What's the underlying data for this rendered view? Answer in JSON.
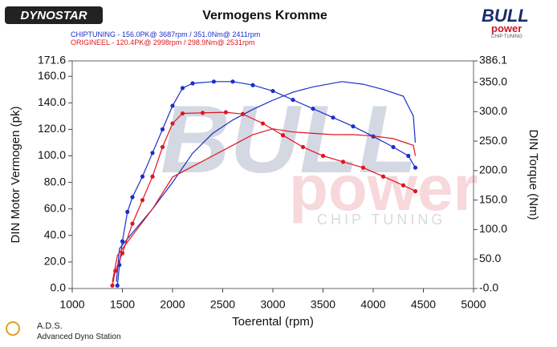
{
  "branding": {
    "left_logo": "DYNOSTAR",
    "right_logo": "BULL",
    "right_logo_sub": "power",
    "right_logo_tag": "CHIP TUNING",
    "watermark": "BULL",
    "watermark_sub": "power",
    "watermark_tag": "CHIP TUNING",
    "footer_title": "A.D.S.",
    "footer_sub": "Advanced Dyno Station"
  },
  "chart_data": {
    "type": "line",
    "title": "Vermogens Kromme",
    "legend": [
      "CHIPTUNING  - 156.0PK@ 3687rpm / 351.0Nm@ 2411rpm",
      "ORIGINEEL  - 120.4PK@ 2998rpm / 298.9Nm@ 2531rpm"
    ],
    "xlabel": "Toerental (rpm)",
    "ylabel": "DIN Motor Vermogen (pk)",
    "y2label": "DIN Torque (Nm)",
    "xlim": [
      1000,
      5000
    ],
    "xticks": [
      1000,
      1500,
      2000,
      2500,
      3000,
      3500,
      4000,
      4500,
      5000
    ],
    "ylim": [
      0,
      171.6
    ],
    "yticks": [
      {
        "value": 0,
        "label": "0.0"
      },
      {
        "value": 20,
        "label": "20.0"
      },
      {
        "value": 40,
        "label": "40.0"
      },
      {
        "value": 60,
        "label": "60.0"
      },
      {
        "value": 80,
        "label": "80.0"
      },
      {
        "value": 100,
        "label": "100.0"
      },
      {
        "value": 120,
        "label": "120.0"
      },
      {
        "value": 140,
        "label": "140.0"
      },
      {
        "value": 160,
        "label": "160.0"
      },
      171.6
    ],
    "y2lim": [
      0,
      386.1
    ],
    "y2ticks": [
      {
        "value": 0,
        "label": "-0.0"
      },
      {
        "value": 50,
        "label": "50.0"
      },
      {
        "value": 100,
        "label": "100.0"
      },
      {
        "value": 150,
        "label": "150.0"
      },
      {
        "value": 200,
        "label": "200.0"
      },
      {
        "value": 250,
        "label": "250.0"
      },
      {
        "value": 300,
        "label": "300.0"
      },
      {
        "value": 350,
        "label": "350.0"
      },
      {
        "value": 386.1,
        "label": "386.1"
      }
    ],
    "grid": false,
    "series": [
      {
        "color": "#1a2fc8",
        "style": "line",
        "x": [
          1440,
          1470,
          1600,
          1800,
          2000,
          2200,
          2400,
          2600,
          2800,
          3000,
          3200,
          3400,
          3687,
          3900,
          4100,
          4300,
          4400,
          4420
        ],
        "values": [
          5,
          30,
          42,
          60,
          80,
          102,
          117,
          127,
          135,
          142,
          148,
          152,
          156,
          154,
          150,
          145,
          130,
          110
        ]
      },
      {
        "color": "#1a2fc8",
        "style": "dots",
        "axis": "y2",
        "x": [
          1450,
          1470,
          1500,
          1550,
          1600,
          1700,
          1800,
          1900,
          2000,
          2100,
          2200,
          2411,
          2600,
          2800,
          3000,
          3200,
          3400,
          3600,
          3800,
          4000,
          4200,
          4350,
          4420
        ],
        "values": [
          5,
          40,
          80,
          130,
          155,
          190,
          230,
          270,
          310,
          340,
          348,
          351,
          351,
          345,
          335,
          320,
          305,
          290,
          275,
          258,
          240,
          225,
          205
        ]
      },
      {
        "color": "#e0141e",
        "style": "line",
        "x": [
          1400,
          1450,
          1600,
          1800,
          2000,
          2200,
          2400,
          2600,
          2800,
          2998,
          3200,
          3400,
          3600,
          3800,
          4000,
          4200,
          4400,
          4420
        ],
        "values": [
          5,
          25,
          40,
          60,
          84,
          92,
          100,
          108,
          116,
          120.4,
          118,
          117,
          116,
          116,
          115,
          113,
          108,
          100
        ]
      },
      {
        "color": "#e0141e",
        "style": "dots",
        "axis": "y2",
        "x": [
          1400,
          1430,
          1500,
          1600,
          1700,
          1800,
          1900,
          2000,
          2100,
          2300,
          2531,
          2700,
          2900,
          3100,
          3300,
          3500,
          3700,
          3900,
          4100,
          4300,
          4420
        ],
        "values": [
          5,
          30,
          60,
          110,
          150,
          190,
          240,
          280,
          297,
          298,
          298.9,
          296,
          280,
          260,
          240,
          225,
          215,
          205,
          190,
          175,
          165
        ]
      }
    ]
  }
}
